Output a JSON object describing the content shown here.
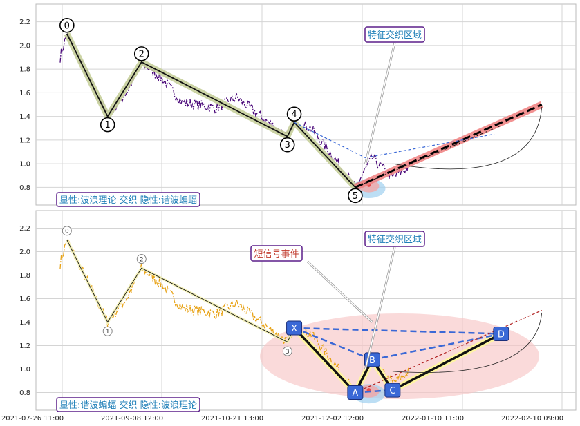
{
  "chart_data": {
    "type": "line",
    "x_ticks": [
      "2021-07-26 11:00",
      "2021-09-08 12:00",
      "2021-10-21 13:00",
      "2021-12-02 12:00",
      "2022-01-10 11:00",
      "2022-02-10 09:00"
    ],
    "y_ticks": [
      "0.8",
      "1.0",
      "1.2",
      "1.4",
      "1.6",
      "1.8",
      "2.0",
      "2.2"
    ],
    "ylim": [
      0.65,
      2.35
    ],
    "grid": true,
    "panels": [
      {
        "annotation_box": "显性:波浪理论 交织 隐性:谐波蝙蝠",
        "feature_box": "特征交织区域",
        "price_color": "#4b0a7a",
        "wave_points": [
          {
            "label": "0",
            "x": 2,
            "y": 2.1
          },
          {
            "label": "1",
            "x": 14,
            "y": 1.4
          },
          {
            "label": "2",
            "x": 24,
            "y": 1.86
          },
          {
            "label": "3",
            "x": 67,
            "y": 1.23
          },
          {
            "label": "4",
            "x": 69,
            "y": 1.35
          },
          {
            "label": "5",
            "x": 87,
            "y": 0.8
          }
        ]
      },
      {
        "annotation_box": "显性:谐波蝙蝠 交织 隐性:波浪理论",
        "feature_box": "特征交织区域",
        "event_box": "短信号事件",
        "price_color": "#e8a317",
        "wave_points": [
          {
            "label": "0",
            "x": 2,
            "y": 2.1
          },
          {
            "label": "1",
            "x": 14,
            "y": 1.4
          },
          {
            "label": "2",
            "x": 24,
            "y": 1.86
          },
          {
            "label": "3",
            "x": 67,
            "y": 1.23
          },
          {
            "label": "",
            "x": 69,
            "y": 1.35
          },
          {
            "label": "",
            "x": 87,
            "y": 0.8
          }
        ],
        "harmonic_points": [
          {
            "label": "X",
            "x": 69,
            "y": 1.35
          },
          {
            "label": "A",
            "x": 87,
            "y": 0.8
          },
          {
            "label": "B",
            "x": 92,
            "y": 1.08
          },
          {
            "label": "C",
            "x": 98,
            "y": 0.82
          },
          {
            "label": "D",
            "x": 130,
            "y": 1.3
          }
        ]
      }
    ],
    "projection": {
      "from": {
        "x": 87,
        "y": 0.8
      },
      "to": {
        "x": 142,
        "y": 1.5
      }
    }
  },
  "colors": {
    "wave_highlight": "#c7cf9b",
    "feature_box_text": "#1f7fb8",
    "event_box_text": "#c0392b",
    "box_border": "#5b1e8a",
    "harmonic_marker": "#3a68d6",
    "projection": "#f08080",
    "ellipse": "#f7c6c6"
  }
}
